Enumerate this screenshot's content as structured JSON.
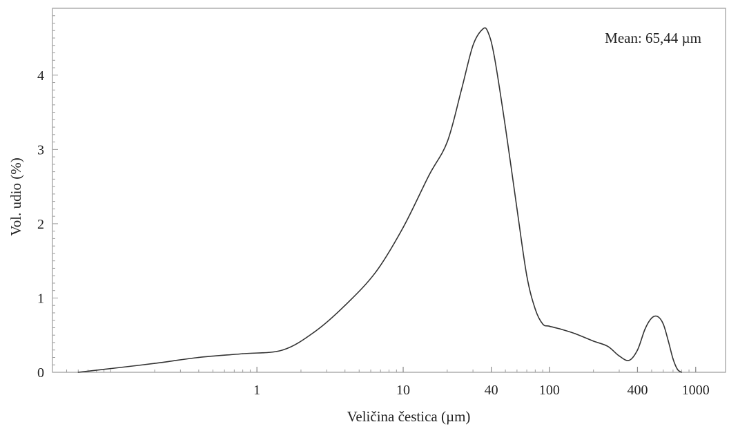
{
  "chart_data": {
    "type": "line",
    "title": "",
    "xlabel": "Veličina čestica (µm)",
    "ylabel": "Vol. udio (%)",
    "x_scale": "log",
    "xlim": [
      0.04,
      1600
    ],
    "ylim": [
      0,
      4.9
    ],
    "x_ticks": [
      {
        "value": 1,
        "label": "1"
      },
      {
        "value": 10,
        "label": "10"
      },
      {
        "value": 40,
        "label": "40"
      },
      {
        "value": 100,
        "label": "100"
      },
      {
        "value": 400,
        "label": "400"
      },
      {
        "value": 1000,
        "label": "1000"
      }
    ],
    "y_ticks": [
      {
        "value": 0,
        "label": "0"
      },
      {
        "value": 1,
        "label": "1"
      },
      {
        "value": 2,
        "label": "2"
      },
      {
        "value": 3,
        "label": "3"
      },
      {
        "value": 4,
        "label": "4"
      }
    ],
    "annotation": "Mean: 65,44 µm",
    "grid": false,
    "legend": "none",
    "line_color": "#333333",
    "series": [
      {
        "x": [
          0.06,
          0.1,
          0.2,
          0.4,
          0.8,
          1.5,
          2.5,
          4,
          6.5,
          10,
          15,
          20,
          25,
          30,
          35,
          38,
          42,
          50,
          60,
          70,
          80,
          90,
          100,
          120,
          150,
          200,
          250,
          300,
          350,
          400,
          450,
          500,
          550,
          600,
          650,
          700,
          750,
          800
        ],
        "y": [
          0.0,
          0.05,
          0.12,
          0.2,
          0.25,
          0.3,
          0.55,
          0.9,
          1.35,
          1.95,
          2.65,
          3.1,
          3.8,
          4.4,
          4.62,
          4.58,
          4.25,
          3.3,
          2.2,
          1.3,
          0.85,
          0.65,
          0.62,
          0.58,
          0.52,
          0.42,
          0.35,
          0.22,
          0.16,
          0.3,
          0.58,
          0.73,
          0.75,
          0.65,
          0.42,
          0.18,
          0.04,
          0.0
        ]
      }
    ]
  }
}
